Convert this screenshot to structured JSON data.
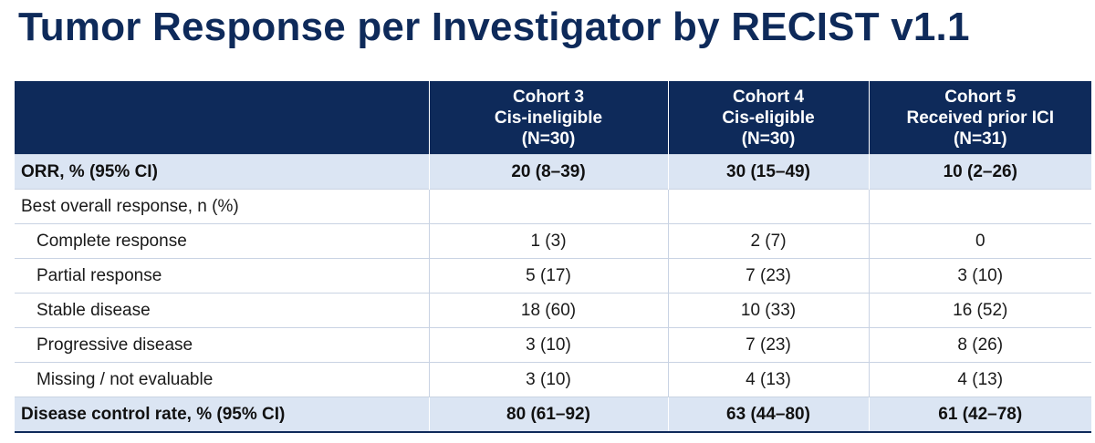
{
  "title": "Tumor Response per Investigator by RECIST v1.1",
  "table": {
    "columns": [
      {
        "lines": [
          "",
          "",
          ""
        ]
      },
      {
        "lines": [
          "Cohort 3",
          "Cis-ineligible",
          "(N=30)"
        ]
      },
      {
        "lines": [
          "Cohort 4",
          "Cis-eligible",
          "(N=30)"
        ]
      },
      {
        "lines": [
          "Cohort 5",
          "Received prior ICI",
          "(N=31)"
        ]
      }
    ],
    "rows": [
      {
        "label": "ORR, % (95% CI)",
        "values": [
          "20 (8–39)",
          "30 (15–49)",
          "10 (2–26)"
        ]
      },
      {
        "label": "Best overall response, n (%)",
        "values": [
          "",
          "",
          ""
        ]
      },
      {
        "label": "Complete response",
        "values": [
          "1 (3)",
          "2 (7)",
          "0"
        ]
      },
      {
        "label": "Partial response",
        "values": [
          "5 (17)",
          "7 (23)",
          "3 (10)"
        ]
      },
      {
        "label": "Stable disease",
        "values": [
          "18 (60)",
          "10 (33)",
          "16 (52)"
        ]
      },
      {
        "label": "Progressive disease",
        "values": [
          "3 (10)",
          "7 (23)",
          "8 (26)"
        ]
      },
      {
        "label": "Missing / not evaluable",
        "values": [
          "3 (10)",
          "4 (13)",
          "4 (13)"
        ]
      },
      {
        "label": "Disease control rate, % (95% CI)",
        "values": [
          "80 (61–92)",
          "63 (44–80)",
          "61 (42–78)"
        ]
      }
    ]
  },
  "colors": {
    "header_bg": "#0e2a5a",
    "highlight_row_bg": "#dbe5f3",
    "title_color": "#0e2a5a"
  }
}
